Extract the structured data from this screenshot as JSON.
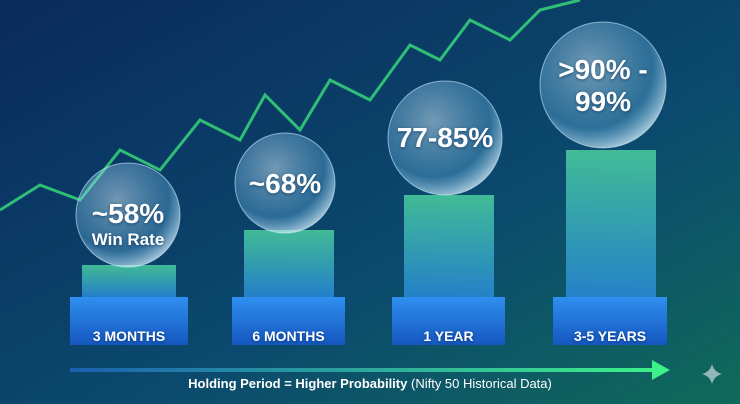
{
  "items": [
    {
      "value": "~58%",
      "note": "Win Rate",
      "label": "3 MONTHS"
    },
    {
      "value": "~68%",
      "label": "6 MONTHS"
    },
    {
      "value": "77-85%",
      "label": "1 YEAR"
    },
    {
      "value": ">90% - 99%",
      "label": "3-5 YEARS"
    }
  ],
  "footer": {
    "emphasis": "Holding Period = Higher Probability",
    "detail": "(Nifty 50 Historical Data)"
  }
}
